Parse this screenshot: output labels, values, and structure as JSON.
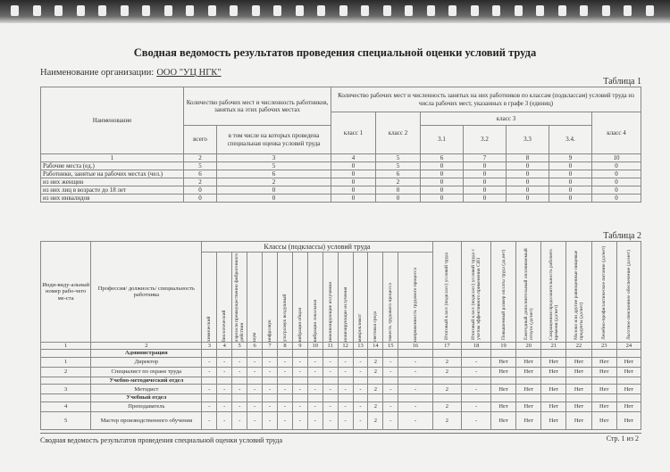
{
  "title": "Сводная ведомость результатов проведения специальной оценки условий труда",
  "org_label": "Наименование организации:",
  "org_name": "ООО \"УЦ НГК\"",
  "table1": {
    "label": "Таблица 1",
    "h_name": "Наименование",
    "h_count": "Количество рабочих мест и численность работников, занятых на этих рабочих местах",
    "h_classes": "Количество рабочих мест и численность занятых на них работников по классам (подклассам) условий труда из числа рабочих мест, указанных в графе 3 (единиц)",
    "h_total": "всего",
    "h_assessed": "в том числе на которых проведена специальная оценка условий труда",
    "h_c1": "класс 1",
    "h_c2": "класс 2",
    "h_c3": "класс 3",
    "h_c4": "класс 4",
    "h_sub": [
      "3.1",
      "3.2",
      "3.3",
      "3.4."
    ],
    "nums": [
      "1",
      "2",
      "3",
      "4",
      "5",
      "6",
      "7",
      "8",
      "9",
      "10"
    ],
    "rows": [
      {
        "name": "Рабочие места (ед.)",
        "v": [
          "5",
          "5",
          "0",
          "5",
          "0",
          "0",
          "0",
          "0",
          "0"
        ]
      },
      {
        "name": "Работники, занятые на рабочих местах (чел.)",
        "v": [
          "6",
          "6",
          "0",
          "6",
          "0",
          "0",
          "0",
          "0",
          "0"
        ]
      },
      {
        "name": "из них женщин",
        "v": [
          "2",
          "2",
          "0",
          "2",
          "0",
          "0",
          "0",
          "0",
          "0"
        ]
      },
      {
        "name": "из них лиц в возрасте до 18 лет",
        "v": [
          "0",
          "0",
          "0",
          "0",
          "0",
          "0",
          "0",
          "0",
          "0"
        ]
      },
      {
        "name": "из них инвалидов",
        "v": [
          "0",
          "0",
          "0",
          "0",
          "0",
          "0",
          "0",
          "0",
          "0"
        ]
      }
    ]
  },
  "table2": {
    "label": "Таблица 2",
    "h_id": "Инди-виду-альный номер рабо-чего ме-ста",
    "h_prof": "Профессия/ должность/ специальность работника",
    "h_classes": "Классы (подклассы) условий труда",
    "factors": [
      "химический",
      "биологический",
      "аэрозоли преимущественно фиброгенного действия",
      "шум",
      "инфразвук",
      "ультразвук воздушный",
      "вибрация общая",
      "вибрация локальная",
      "неионизирующие излучения",
      "ионизирующие излучения",
      "микроклимат",
      "световая среда",
      "тяжесть трудового процесса",
      "напряженность трудового процесса"
    ],
    "extra": [
      "Итоговый класс (подкласс) условий труда",
      "Итоговый класс (подкласс) условий труда с учетом эффективного применения СИЗ",
      "Повышенный размер оплаты труда (да,нет)",
      "Ежегодный дополнительный оплачиваемый отпуск (да/нет)",
      "Сокращенная продолжительность рабочего времени (да/нет)",
      "Молоко или другие равноценные пищевые продукты (да/нет)",
      "Лечебно-профилактическое питание (да/нет)",
      "Льготное пенсионное обеспечение (да/нет)"
    ],
    "nums": [
      "1",
      "2",
      "3",
      "4",
      "5",
      "6",
      "7",
      "8",
      "9",
      "10",
      "11",
      "12",
      "13",
      "14",
      "15",
      "16",
      "17",
      "18",
      "19",
      "20",
      "21",
      "22",
      "23",
      "24"
    ],
    "rows": [
      {
        "section": "Администрация"
      },
      {
        "id": "1",
        "prof": "Директор",
        "v": [
          "-",
          "-",
          "-",
          "-",
          "-",
          "-",
          "-",
          "-",
          "-",
          "-",
          "-",
          "2",
          "-",
          "-",
          "2",
          "-",
          "Нет",
          "Нет",
          "Нет",
          "Нет",
          "Нет",
          "Нет"
        ]
      },
      {
        "id": "2",
        "prof": "Специалист по охране труда",
        "v": [
          "-",
          "-",
          "-",
          "-",
          "-",
          "-",
          "-",
          "-",
          "-",
          "-",
          "-",
          "2",
          "-",
          "-",
          "2",
          "-",
          "Нет",
          "Нет",
          "Нет",
          "Нет",
          "Нет",
          "Нет"
        ]
      },
      {
        "section": "Учебно-методический отдел"
      },
      {
        "id": "3",
        "prof": "Методист",
        "v": [
          "-",
          "-",
          "-",
          "-",
          "-",
          "-",
          "-",
          "-",
          "-",
          "-",
          "-",
          "2",
          "-",
          "-",
          "2",
          "-",
          "Нет",
          "Нет",
          "Нет",
          "Нет",
          "Нет",
          "Нет"
        ]
      },
      {
        "section": "Учебный отдел"
      },
      {
        "id": "4",
        "prof": "Преподаватель",
        "v": [
          "-",
          "-",
          "-",
          "-",
          "-",
          "-",
          "-",
          "-",
          "-",
          "-",
          "-",
          "2",
          "-",
          "-",
          "2",
          "-",
          "Нет",
          "Нет",
          "Нет",
          "Нет",
          "Нет",
          "Нет"
        ]
      },
      {
        "id": "5",
        "prof": "Мастер производственного обучения",
        "v": [
          "-",
          "-",
          "-",
          "-",
          "-",
          "-",
          "-",
          "-",
          "-",
          "-",
          "-",
          "2",
          "-",
          "-",
          "2",
          "-",
          "Нет",
          "Нет",
          "Нет",
          "Нет",
          "Нет",
          "Нет"
        ]
      }
    ]
  },
  "footer": {
    "text": "Сводная ведомость результатов проведения специальной оценки условий труда",
    "page": "Стр. 1 из 2"
  }
}
